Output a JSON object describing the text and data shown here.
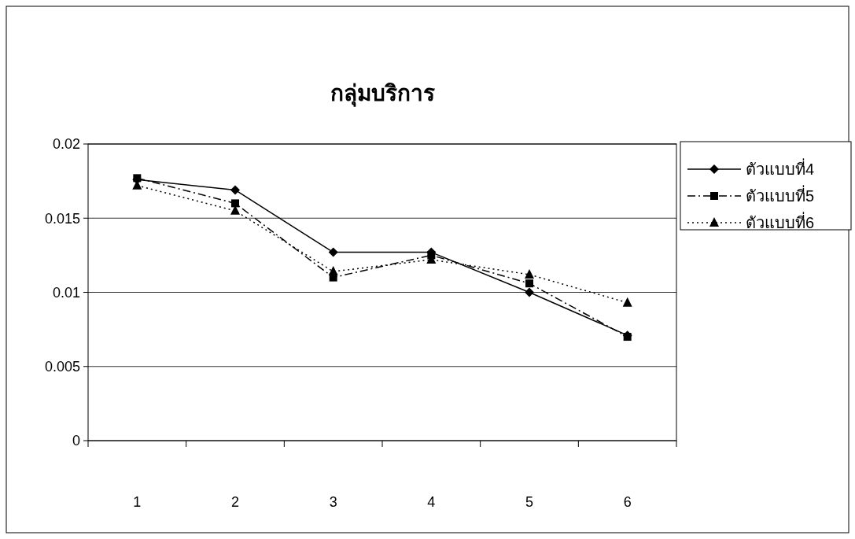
{
  "chart_data": {
    "type": "line",
    "title": "กลุ่มบริการ",
    "categories": [
      "1",
      "2",
      "3",
      "4",
      "5",
      "6"
    ],
    "series": [
      {
        "name": "ตัวแบบที่4",
        "color": "#000000",
        "marker": "diamond",
        "line_style": "solid",
        "values": [
          0.0176,
          0.0169,
          0.0127,
          0.0127,
          0.01,
          0.0071
        ]
      },
      {
        "name": "ตัวแบบที่5",
        "color": "#000000",
        "marker": "square",
        "line_style": "dashdot",
        "values": [
          0.0177,
          0.016,
          0.011,
          0.0125,
          0.0106,
          0.007
        ]
      },
      {
        "name": "ตัวแบบที่6",
        "color": "#000000",
        "marker": "triangle",
        "line_style": "dotted",
        "values": [
          0.0172,
          0.0155,
          0.0114,
          0.0122,
          0.0112,
          0.0093
        ]
      }
    ],
    "ylim": [
      0,
      0.02
    ],
    "yticks": [
      0,
      0.005,
      0.01,
      0.015,
      0.02
    ],
    "grid": "y",
    "legend": "right"
  }
}
